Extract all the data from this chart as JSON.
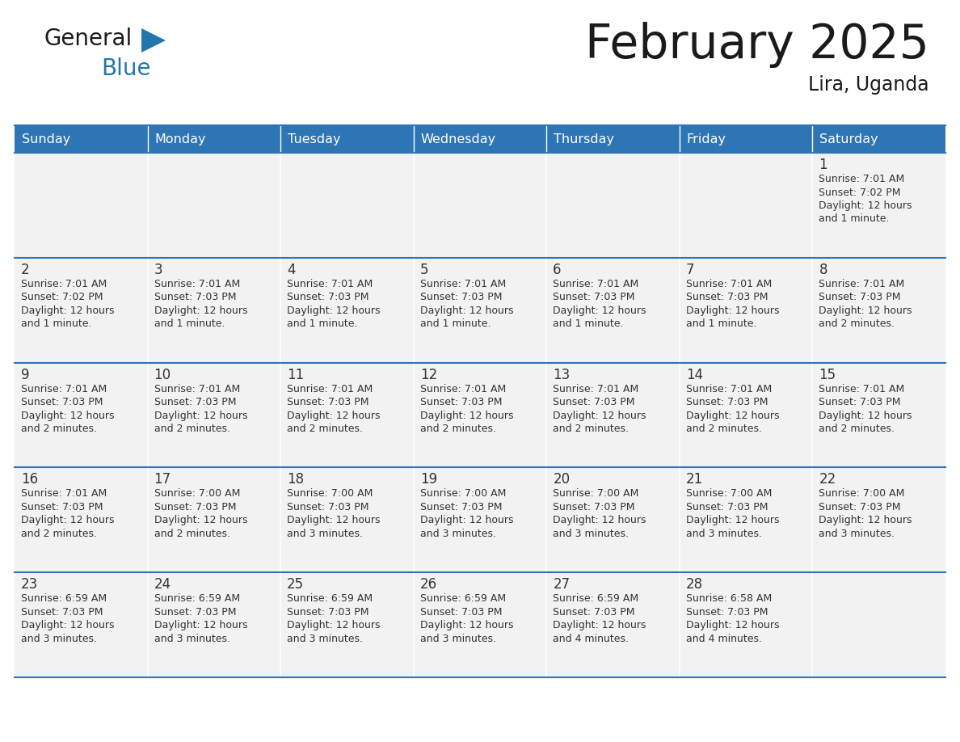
{
  "title": "February 2025",
  "subtitle": "Lira, Uganda",
  "header_bg": "#2E75B6",
  "header_text": "#FFFFFF",
  "cell_bg": "#F2F2F2",
  "separator_color": "#2E75B6",
  "col_line_color": "#FFFFFF",
  "text_color": "#333333",
  "day_names": [
    "Sunday",
    "Monday",
    "Tuesday",
    "Wednesday",
    "Thursday",
    "Friday",
    "Saturday"
  ],
  "days": [
    {
      "day": 1,
      "col": 6,
      "row": 0,
      "sunrise": "7:01 AM",
      "sunset": "7:02 PM",
      "daylight": "12 hours\nand 1 minute."
    },
    {
      "day": 2,
      "col": 0,
      "row": 1,
      "sunrise": "7:01 AM",
      "sunset": "7:02 PM",
      "daylight": "12 hours\nand 1 minute."
    },
    {
      "day": 3,
      "col": 1,
      "row": 1,
      "sunrise": "7:01 AM",
      "sunset": "7:03 PM",
      "daylight": "12 hours\nand 1 minute."
    },
    {
      "day": 4,
      "col": 2,
      "row": 1,
      "sunrise": "7:01 AM",
      "sunset": "7:03 PM",
      "daylight": "12 hours\nand 1 minute."
    },
    {
      "day": 5,
      "col": 3,
      "row": 1,
      "sunrise": "7:01 AM",
      "sunset": "7:03 PM",
      "daylight": "12 hours\nand 1 minute."
    },
    {
      "day": 6,
      "col": 4,
      "row": 1,
      "sunrise": "7:01 AM",
      "sunset": "7:03 PM",
      "daylight": "12 hours\nand 1 minute."
    },
    {
      "day": 7,
      "col": 5,
      "row": 1,
      "sunrise": "7:01 AM",
      "sunset": "7:03 PM",
      "daylight": "12 hours\nand 1 minute."
    },
    {
      "day": 8,
      "col": 6,
      "row": 1,
      "sunrise": "7:01 AM",
      "sunset": "7:03 PM",
      "daylight": "12 hours\nand 2 minutes."
    },
    {
      "day": 9,
      "col": 0,
      "row": 2,
      "sunrise": "7:01 AM",
      "sunset": "7:03 PM",
      "daylight": "12 hours\nand 2 minutes."
    },
    {
      "day": 10,
      "col": 1,
      "row": 2,
      "sunrise": "7:01 AM",
      "sunset": "7:03 PM",
      "daylight": "12 hours\nand 2 minutes."
    },
    {
      "day": 11,
      "col": 2,
      "row": 2,
      "sunrise": "7:01 AM",
      "sunset": "7:03 PM",
      "daylight": "12 hours\nand 2 minutes."
    },
    {
      "day": 12,
      "col": 3,
      "row": 2,
      "sunrise": "7:01 AM",
      "sunset": "7:03 PM",
      "daylight": "12 hours\nand 2 minutes."
    },
    {
      "day": 13,
      "col": 4,
      "row": 2,
      "sunrise": "7:01 AM",
      "sunset": "7:03 PM",
      "daylight": "12 hours\nand 2 minutes."
    },
    {
      "day": 14,
      "col": 5,
      "row": 2,
      "sunrise": "7:01 AM",
      "sunset": "7:03 PM",
      "daylight": "12 hours\nand 2 minutes."
    },
    {
      "day": 15,
      "col": 6,
      "row": 2,
      "sunrise": "7:01 AM",
      "sunset": "7:03 PM",
      "daylight": "12 hours\nand 2 minutes."
    },
    {
      "day": 16,
      "col": 0,
      "row": 3,
      "sunrise": "7:01 AM",
      "sunset": "7:03 PM",
      "daylight": "12 hours\nand 2 minutes."
    },
    {
      "day": 17,
      "col": 1,
      "row": 3,
      "sunrise": "7:00 AM",
      "sunset": "7:03 PM",
      "daylight": "12 hours\nand 2 minutes."
    },
    {
      "day": 18,
      "col": 2,
      "row": 3,
      "sunrise": "7:00 AM",
      "sunset": "7:03 PM",
      "daylight": "12 hours\nand 3 minutes."
    },
    {
      "day": 19,
      "col": 3,
      "row": 3,
      "sunrise": "7:00 AM",
      "sunset": "7:03 PM",
      "daylight": "12 hours\nand 3 minutes."
    },
    {
      "day": 20,
      "col": 4,
      "row": 3,
      "sunrise": "7:00 AM",
      "sunset": "7:03 PM",
      "daylight": "12 hours\nand 3 minutes."
    },
    {
      "day": 21,
      "col": 5,
      "row": 3,
      "sunrise": "7:00 AM",
      "sunset": "7:03 PM",
      "daylight": "12 hours\nand 3 minutes."
    },
    {
      "day": 22,
      "col": 6,
      "row": 3,
      "sunrise": "7:00 AM",
      "sunset": "7:03 PM",
      "daylight": "12 hours\nand 3 minutes."
    },
    {
      "day": 23,
      "col": 0,
      "row": 4,
      "sunrise": "6:59 AM",
      "sunset": "7:03 PM",
      "daylight": "12 hours\nand 3 minutes."
    },
    {
      "day": 24,
      "col": 1,
      "row": 4,
      "sunrise": "6:59 AM",
      "sunset": "7:03 PM",
      "daylight": "12 hours\nand 3 minutes."
    },
    {
      "day": 25,
      "col": 2,
      "row": 4,
      "sunrise": "6:59 AM",
      "sunset": "7:03 PM",
      "daylight": "12 hours\nand 3 minutes."
    },
    {
      "day": 26,
      "col": 3,
      "row": 4,
      "sunrise": "6:59 AM",
      "sunset": "7:03 PM",
      "daylight": "12 hours\nand 3 minutes."
    },
    {
      "day": 27,
      "col": 4,
      "row": 4,
      "sunrise": "6:59 AM",
      "sunset": "7:03 PM",
      "daylight": "12 hours\nand 4 minutes."
    },
    {
      "day": 28,
      "col": 5,
      "row": 4,
      "sunrise": "6:58 AM",
      "sunset": "7:03 PM",
      "daylight": "12 hours\nand 4 minutes."
    }
  ],
  "num_rows": 5,
  "logo_general_color": "#1a1a1a",
  "logo_blue_color": "#2176AE",
  "logo_triangle_color": "#2176AE",
  "title_color": "#1a1a1a",
  "subtitle_color": "#1a1a1a"
}
